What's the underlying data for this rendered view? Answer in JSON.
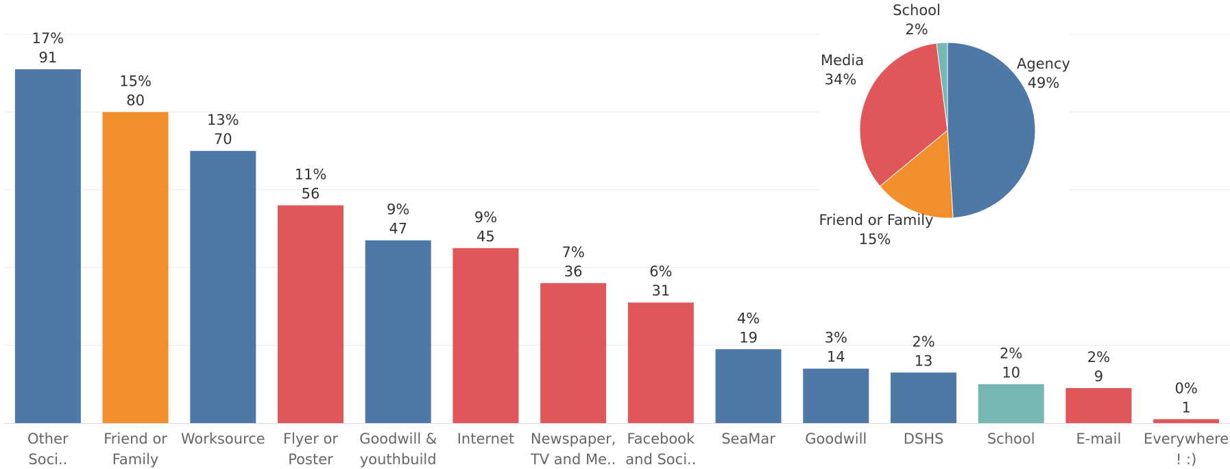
{
  "chart_data": [
    {
      "type": "bar",
      "categories": [
        "Other\nSoci..",
        "Friend or\nFamily",
        "Worksource",
        "Flyer or\nPoster",
        "Goodwill &\nyouthbuild",
        "Internet",
        "Newspaper,\nTV and Me..",
        "Facebook\nand Soci..",
        "SeaMar",
        "Goodwill",
        "DSHS",
        "School",
        "E-mail",
        "Everywhere\n! :)"
      ],
      "values": [
        91,
        80,
        70,
        56,
        47,
        45,
        36,
        31,
        19,
        14,
        13,
        10,
        9,
        1
      ],
      "percent_labels": [
        "17%",
        "15%",
        "13%",
        "11%",
        "9%",
        "9%",
        "7%",
        "6%",
        "4%",
        "3%",
        "2%",
        "2%",
        "2%",
        "0%"
      ],
      "group": [
        "Agency",
        "Friend or Family",
        "Agency",
        "Media",
        "Agency",
        "Media",
        "Media",
        "Media",
        "Agency",
        "Agency",
        "Agency",
        "School",
        "Media",
        "Media"
      ],
      "ylim": [
        0,
        100
      ],
      "grid": true,
      "colors": {
        "Agency": "#4e79a7",
        "Friend or Family": "#f28e2b",
        "Media": "#e15759",
        "School": "#76b7b2"
      }
    },
    {
      "type": "pie",
      "labels": [
        "Agency",
        "Friend or Family",
        "Media",
        "School"
      ],
      "values": [
        49,
        15,
        34,
        2
      ],
      "value_labels": [
        "49%",
        "15%",
        "34%",
        "2%"
      ],
      "colors": [
        "#4e79a7",
        "#f28e2b",
        "#e15759",
        "#76b7b2"
      ]
    }
  ]
}
